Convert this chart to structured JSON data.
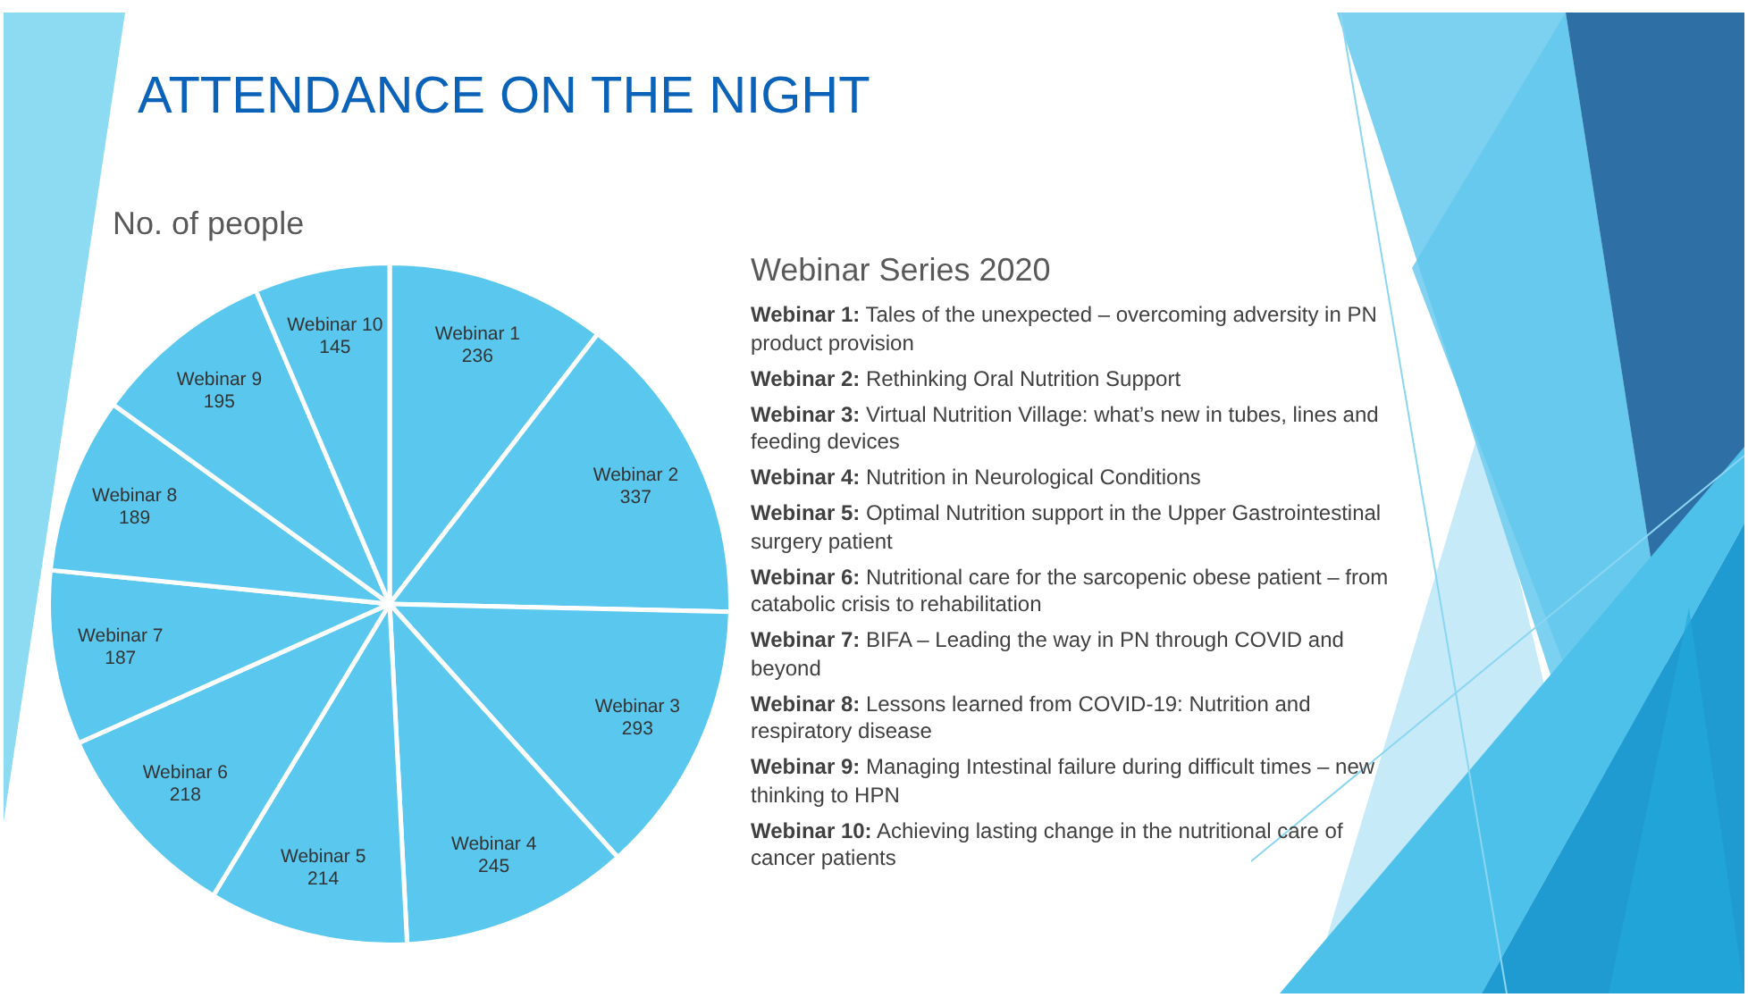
{
  "chart_data": {
    "type": "pie",
    "title": "ATTENDANCE ON THE NIGHT",
    "subtitle": "No. of people",
    "categories": [
      "Webinar 1",
      "Webinar 2",
      "Webinar 3",
      "Webinar 4",
      "Webinar 5",
      "Webinar 6",
      "Webinar 7",
      "Webinar 8",
      "Webinar 9",
      "Webinar 10"
    ],
    "values": [
      236,
      337,
      293,
      245,
      214,
      218,
      187,
      189,
      195,
      145
    ],
    "colors": [
      "#5ac8ee",
      "#5ac8ee",
      "#5ac8ee",
      "#5ac8ee",
      "#5ac8ee",
      "#5ac8ee",
      "#5ac8ee",
      "#5ac8ee",
      "#5ac8ee",
      "#5ac8ee"
    ],
    "data_labels": true,
    "legend": false,
    "annotations": [
      "Webinar Series 2020",
      "Webinar 1: Tales of the unexpected – overcoming adversity in PN product provision",
      "Webinar 2: Rethinking Oral Nutrition Support",
      "Webinar 3: Virtual Nutrition Village: what’s new in tubes, lines and feeding devices",
      "Webinar 4: Nutrition in Neurological Conditions",
      "Webinar 5: Optimal Nutrition support in the Upper Gastrointestinal surgery patient",
      "Webinar 6: Nutritional care for the sarcopenic obese patient – from catabolic crisis to rehabilitation",
      "Webinar 7: BIFA – Leading the way in PN through COVID and beyond",
      "Webinar 8: Lessons learned from COVID-19: Nutrition and respiratory disease",
      "Webinar 9: Managing Intestinal failure during difficult times – new thinking to HPN",
      "Webinar 10: Achieving lasting change in the nutritional care of cancer patients"
    ]
  }
}
